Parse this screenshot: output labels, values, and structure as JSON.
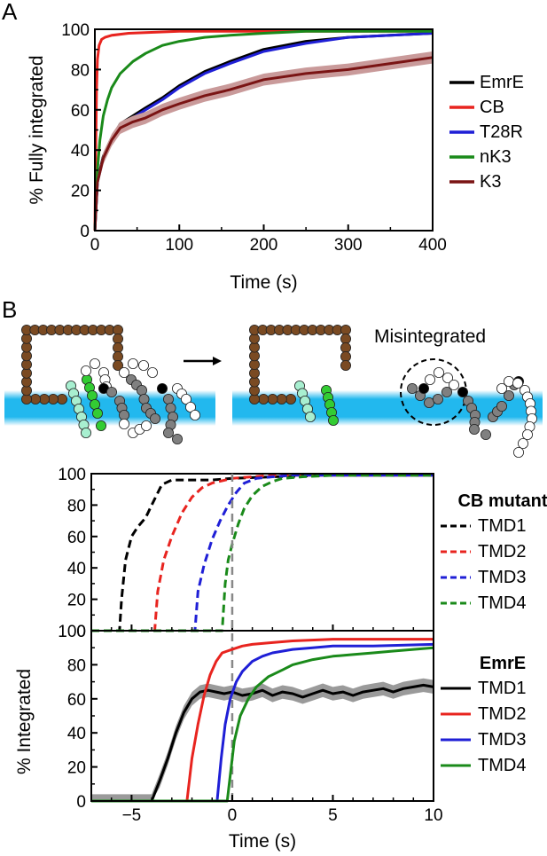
{
  "panel_a": {
    "letter": "A",
    "chart_data": {
      "type": "line",
      "xlabel": "Time (s)",
      "ylabel": "% Fully integrated",
      "xlim": [
        0,
        400
      ],
      "ylim": [
        0,
        100
      ],
      "x_ticks": [
        0,
        100,
        200,
        300,
        400
      ],
      "y_ticks": [
        0,
        20,
        40,
        60,
        80,
        100
      ],
      "legend_position": "right",
      "series": [
        {
          "name": "EmrE",
          "color": "#000000",
          "x": [
            0,
            3,
            10,
            20,
            30,
            45,
            60,
            80,
            100,
            130,
            160,
            200,
            250,
            300,
            350,
            400
          ],
          "y": [
            0,
            25,
            37,
            46,
            53,
            57,
            61,
            66,
            72,
            79,
            84,
            90,
            94,
            96,
            97,
            98
          ]
        },
        {
          "name": "CB",
          "color": "#e8241f",
          "x": [
            0,
            1,
            2,
            3,
            5,
            8,
            12,
            20,
            40,
            100,
            400
          ],
          "y": [
            0,
            40,
            70,
            85,
            92,
            95,
            96,
            97,
            98,
            99,
            99
          ]
        },
        {
          "name": "T28R",
          "color": "#1f1fd6",
          "x": [
            0,
            3,
            10,
            20,
            30,
            45,
            60,
            80,
            100,
            130,
            160,
            200,
            250,
            300,
            350,
            400
          ],
          "y": [
            0,
            24,
            36,
            45,
            51,
            56,
            60,
            65,
            71,
            78,
            83,
            89,
            93,
            96,
            97,
            98
          ]
        },
        {
          "name": "nK3",
          "color": "#1a8a1a",
          "x": [
            0,
            3,
            6,
            10,
            15,
            20,
            30,
            45,
            60,
            80,
            100,
            130,
            160,
            200,
            250,
            300,
            400
          ],
          "y": [
            0,
            30,
            45,
            57,
            65,
            71,
            78,
            84,
            88,
            92,
            94,
            96,
            97,
            98,
            99,
            99,
            99
          ]
        },
        {
          "name": "K3",
          "color": "#7a1414",
          "x": [
            0,
            3,
            10,
            20,
            30,
            45,
            60,
            80,
            100,
            130,
            160,
            200,
            250,
            300,
            350,
            400
          ],
          "y": [
            0,
            24,
            36,
            45,
            51,
            54,
            56,
            60,
            63,
            67,
            70,
            75,
            78,
            80,
            83,
            86
          ]
        }
      ]
    }
  },
  "panel_b": {
    "letter": "B",
    "misintegrated_label": "Misintegrated",
    "top_chart": {
      "chart_data": {
        "type": "line",
        "ylabel": "% Integrated",
        "xlim": [
          -7,
          10
        ],
        "ylim": [
          0,
          100
        ],
        "x_ticks": [
          -5,
          0,
          5,
          10
        ],
        "y_ticks": [
          0,
          20,
          40,
          60,
          80,
          100
        ],
        "legend_title": "CB mutant",
        "line_style": "dashed",
        "series": [
          {
            "name": "TMD1",
            "color": "#000000",
            "x": [
              -7,
              -5.6,
              -5.5,
              -5.3,
              -5.0,
              -4.7,
              -4.3,
              -4.0,
              -3.5,
              -3.0,
              -2.0,
              -1.0,
              0,
              2,
              5,
              10
            ],
            "y": [
              0,
              0,
              20,
              45,
              60,
              66,
              72,
              80,
              93,
              96,
              96,
              96,
              97,
              98,
              99,
              99
            ]
          },
          {
            "name": "TMD2",
            "color": "#e8241f",
            "x": [
              -7,
              -3.85,
              -3.7,
              -3.4,
              -3.0,
              -2.5,
              -2.0,
              -1.5,
              -1.0,
              0,
              1,
              2,
              5,
              10
            ],
            "y": [
              0,
              0,
              25,
              45,
              60,
              75,
              85,
              91,
              94,
              97,
              98,
              99,
              99,
              99
            ]
          },
          {
            "name": "TMD3",
            "color": "#1f1fd6",
            "x": [
              -7,
              -1.85,
              -1.7,
              -1.4,
              -1.0,
              -0.6,
              -0.2,
              0.2,
              0.6,
              1.2,
              2,
              3,
              5,
              10
            ],
            "y": [
              0,
              0,
              25,
              42,
              58,
              70,
              80,
              88,
              94,
              97,
              98,
              99,
              99,
              99
            ]
          },
          {
            "name": "TMD4",
            "color": "#1a8a1a",
            "x": [
              -7,
              -0.5,
              -0.35,
              -0.2,
              0,
              0.3,
              0.6,
              1.0,
              1.5,
              2.0,
              2.5,
              3.5,
              5,
              10
            ],
            "y": [
              0,
              0,
              30,
              45,
              55,
              68,
              78,
              86,
              92,
              95,
              97,
              98,
              99,
              99
            ]
          }
        ]
      }
    },
    "bottom_chart": {
      "chart_data": {
        "type": "line",
        "xlabel": "Time (s)",
        "ylabel": "% Integrated",
        "xlim": [
          -7,
          10
        ],
        "ylim": [
          0,
          100
        ],
        "x_ticks": [
          -5,
          0,
          5,
          10
        ],
        "y_ticks": [
          0,
          20,
          40,
          60,
          80,
          100
        ],
        "legend_title": "EmrE",
        "line_style": "solid",
        "series": [
          {
            "name": "TMD1",
            "color": "#000000",
            "x": [
              -7,
              -4.0,
              -3.6,
              -3.2,
              -2.8,
              -2.4,
              -2.0,
              -1.6,
              -1.2,
              -0.8,
              -0.4,
              0,
              0.5,
              1,
              1.5,
              2,
              2.5,
              3,
              3.5,
              4,
              4.5,
              5,
              5.5,
              6,
              6.5,
              7,
              7.5,
              8,
              8.5,
              9,
              9.5,
              10
            ],
            "y": [
              0,
              0,
              12,
              25,
              40,
              52,
              60,
              64,
              65,
              64,
              63,
              64,
              62,
              63,
              65,
              62,
              64,
              63,
              61,
              63,
              65,
              63,
              64,
              62,
              64,
              65,
              66,
              64,
              66,
              67,
              68,
              67
            ]
          },
          {
            "name": "TMD2",
            "color": "#e8241f",
            "x": [
              -7,
              -2.25,
              -2.0,
              -1.7,
              -1.4,
              -1.1,
              -0.8,
              -0.5,
              0,
              0.5,
              1,
              2,
              3,
              5,
              7,
              10
            ],
            "y": [
              0,
              0,
              25,
              45,
              62,
              74,
              82,
              87,
              89,
              91,
              92,
              93,
              94,
              95,
              95,
              95
            ]
          },
          {
            "name": "TMD3",
            "color": "#1f1fd6",
            "x": [
              -7,
              -0.75,
              -0.55,
              -0.35,
              -0.1,
              0.2,
              0.5,
              1.0,
              1.5,
              2,
              3,
              4,
              5,
              7,
              10
            ],
            "y": [
              0,
              0,
              25,
              45,
              60,
              70,
              76,
              82,
              85,
              87,
              89,
              90,
              91,
              91,
              92
            ]
          },
          {
            "name": "TMD4",
            "color": "#1a8a1a",
            "x": [
              -7,
              -0.25,
              -0.1,
              0.1,
              0.4,
              0.8,
              1.2,
              1.8,
              2.5,
              3,
              4,
              5,
              6,
              7,
              8,
              9,
              10
            ],
            "y": [
              0,
              0,
              15,
              35,
              50,
              60,
              67,
              73,
              77,
              80,
              83,
              85,
              86,
              87,
              88,
              89,
              90
            ]
          }
        ]
      }
    },
    "reference_line_x": 0
  },
  "colors": {
    "membrane": "#22b8ee",
    "translocon": "#7a4a22",
    "bead_gray": "#808080",
    "bead_black": "#000000",
    "bead_white": "#ffffff",
    "bead_green": "#33cc33",
    "bead_lightgreen": "#a8efd0"
  }
}
